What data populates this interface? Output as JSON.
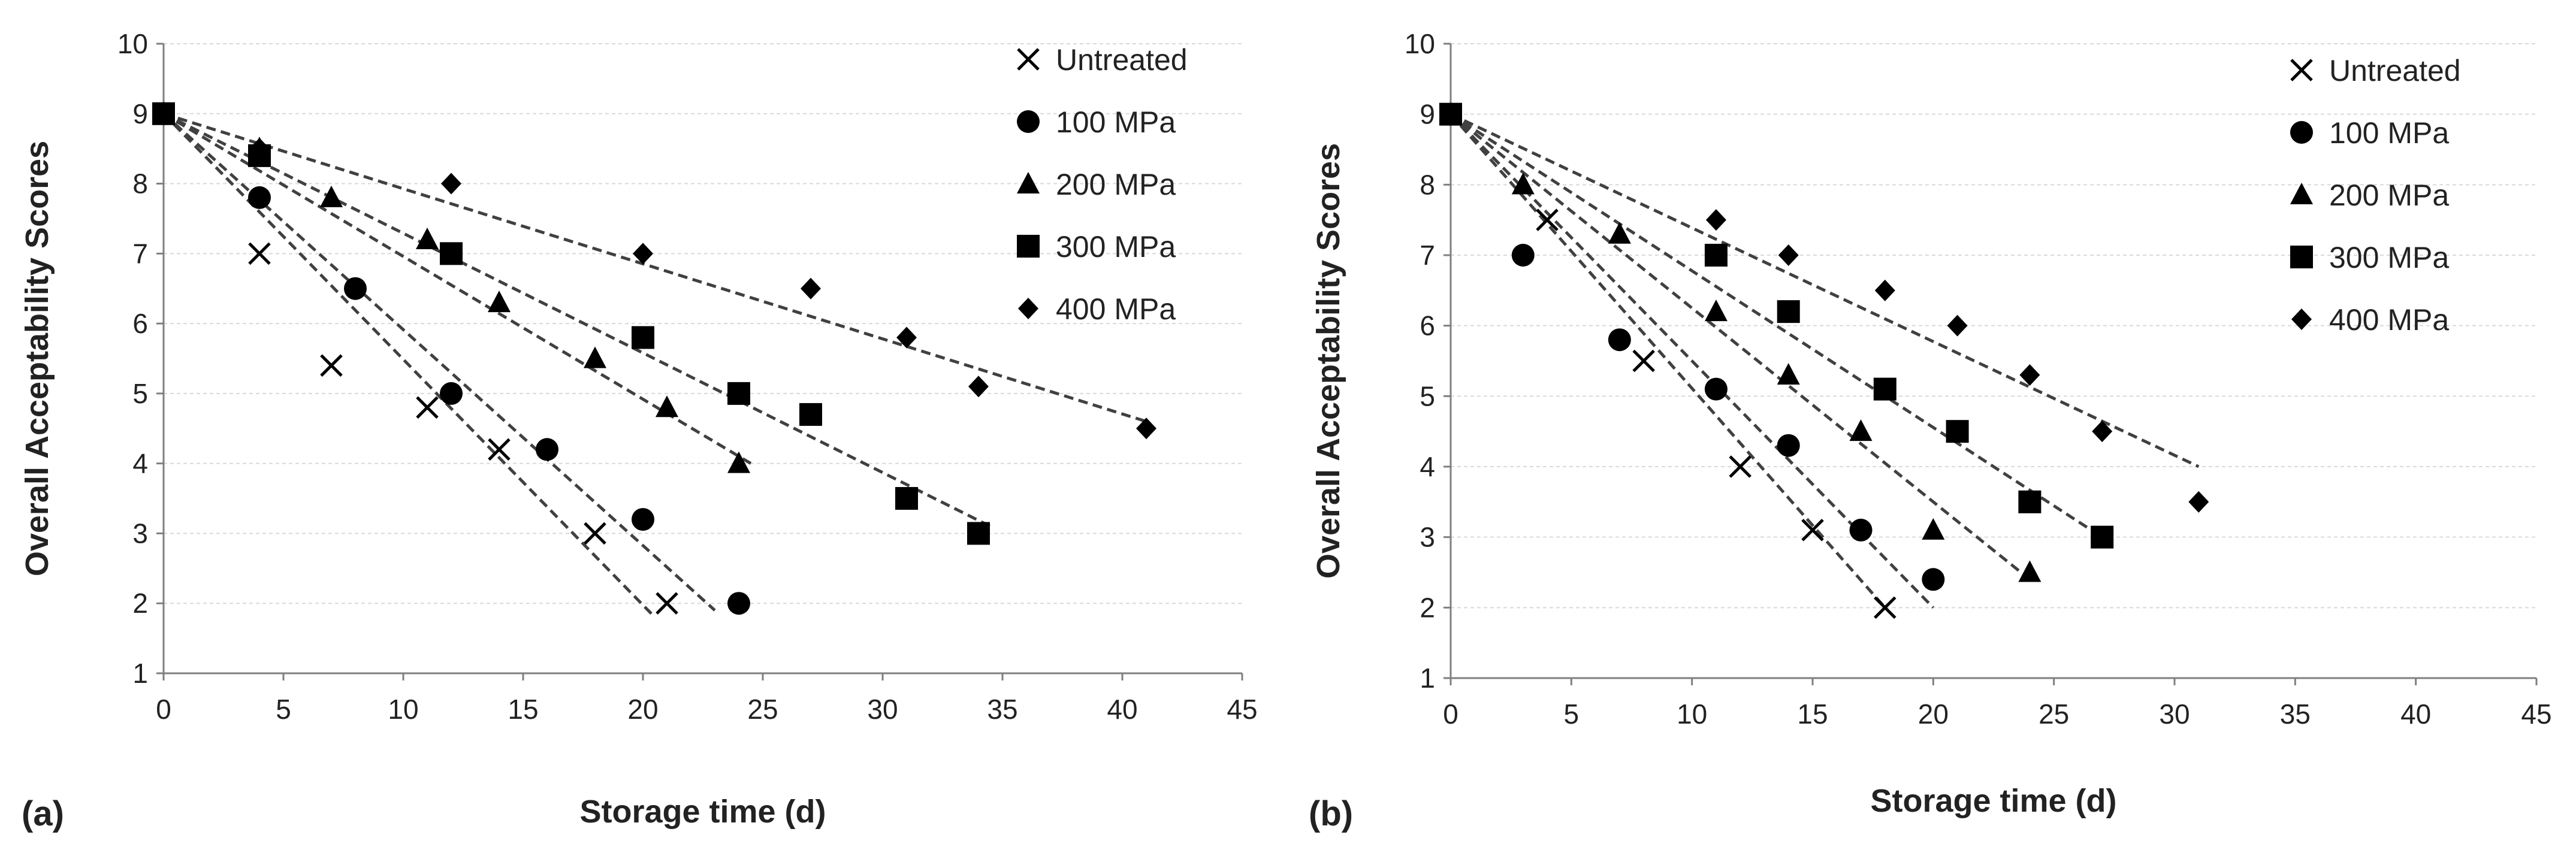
{
  "chart_data": [
    {
      "panel_label": "(a)",
      "type": "scatter",
      "xlabel": "Storage time (d)",
      "ylabel": "Overall Acceptability Scores",
      "xlim": [
        0,
        45
      ],
      "ylim": [
        1,
        10
      ],
      "xticks": [
        0,
        5,
        10,
        15,
        20,
        25,
        30,
        35,
        40,
        45
      ],
      "yticks": [
        1,
        2,
        3,
        4,
        5,
        6,
        7,
        8,
        9,
        10
      ],
      "grid": "horizontal",
      "legend_position": "top-right",
      "series": [
        {
          "name": "Untreated",
          "marker": "x",
          "x": [
            0,
            4,
            7,
            11,
            14,
            18,
            21
          ],
          "y": [
            9,
            7.0,
            5.4,
            4.8,
            4.2,
            3.0,
            2.0
          ],
          "trend": {
            "x": [
              0,
              20.5
            ],
            "y": [
              9,
              1.8
            ]
          }
        },
        {
          "name": "100 MPa",
          "marker": "circle",
          "x": [
            0,
            4,
            8,
            12,
            16,
            20,
            24
          ],
          "y": [
            9,
            7.8,
            6.5,
            5.0,
            4.2,
            3.2,
            2.0
          ],
          "trend": {
            "x": [
              0,
              23
            ],
            "y": [
              9,
              1.9
            ]
          }
        },
        {
          "name": "200 MPa",
          "marker": "triangle",
          "x": [
            0,
            4,
            7,
            11,
            14,
            18,
            21,
            24
          ],
          "y": [
            9,
            8.5,
            7.8,
            7.2,
            6.3,
            5.5,
            4.8,
            4.0
          ],
          "trend": {
            "x": [
              0,
              24.5
            ],
            "y": [
              9,
              4.0
            ]
          }
        },
        {
          "name": "300 MPa",
          "marker": "square",
          "x": [
            0,
            4,
            12,
            20,
            24,
            27,
            31,
            34
          ],
          "y": [
            9,
            8.4,
            7.0,
            5.8,
            5.0,
            4.7,
            3.5,
            3.0
          ],
          "trend": {
            "x": [
              0,
              34.5
            ],
            "y": [
              9,
              3.1
            ]
          }
        },
        {
          "name": "400 MPa",
          "marker": "diamond",
          "x": [
            0,
            4,
            12,
            20,
            27,
            31,
            34,
            41
          ],
          "y": [
            9,
            8.5,
            8.0,
            7.0,
            6.5,
            5.8,
            5.1,
            4.5
          ],
          "trend": {
            "x": [
              0,
              41
            ],
            "y": [
              9,
              4.6
            ]
          }
        }
      ]
    },
    {
      "panel_label": "(b)",
      "type": "scatter",
      "xlabel": "Storage time (d)",
      "ylabel": "Overall Acceptability Scores",
      "xlim": [
        0,
        45
      ],
      "ylim": [
        1,
        10
      ],
      "xticks": [
        0,
        5,
        10,
        15,
        20,
        25,
        30,
        35,
        40,
        45
      ],
      "yticks": [
        1,
        2,
        3,
        4,
        5,
        6,
        7,
        8,
        9,
        10
      ],
      "grid": "horizontal",
      "legend_position": "top-right",
      "series": [
        {
          "name": "Untreated",
          "marker": "x",
          "x": [
            0,
            4,
            8,
            12,
            15,
            18
          ],
          "y": [
            9,
            7.5,
            5.5,
            4.0,
            3.1,
            2.0
          ],
          "trend": {
            "x": [
              0,
              18
            ],
            "y": [
              9,
              2.0
            ]
          }
        },
        {
          "name": "100 MPa",
          "marker": "circle",
          "x": [
            0,
            3,
            7,
            11,
            14,
            17,
            20
          ],
          "y": [
            9,
            7.0,
            5.8,
            5.1,
            4.3,
            3.1,
            2.4
          ],
          "trend": {
            "x": [
              0,
              20
            ],
            "y": [
              9,
              2.0
            ]
          }
        },
        {
          "name": "200 MPa",
          "marker": "triangle",
          "x": [
            0,
            3,
            7,
            11,
            14,
            17,
            20,
            24
          ],
          "y": [
            9,
            8.0,
            7.3,
            6.2,
            5.3,
            4.5,
            3.1,
            2.5
          ],
          "trend": {
            "x": [
              0,
              24
            ],
            "y": [
              9,
              2.4
            ]
          }
        },
        {
          "name": "300 MPa",
          "marker": "square",
          "x": [
            0,
            11,
            14,
            18,
            21,
            24,
            27
          ],
          "y": [
            9,
            7.0,
            6.2,
            5.1,
            4.5,
            3.5,
            3.0
          ],
          "trend": {
            "x": [
              0,
              27
            ],
            "y": [
              9,
              3.0
            ]
          }
        },
        {
          "name": "400 MPa",
          "marker": "diamond",
          "x": [
            0,
            11,
            14,
            18,
            21,
            24,
            27,
            31
          ],
          "y": [
            9,
            7.5,
            7.0,
            6.5,
            6.0,
            5.3,
            4.5,
            3.5
          ],
          "trend": {
            "x": [
              0,
              31
            ],
            "y": [
              9,
              4.0
            ]
          }
        }
      ]
    }
  ]
}
